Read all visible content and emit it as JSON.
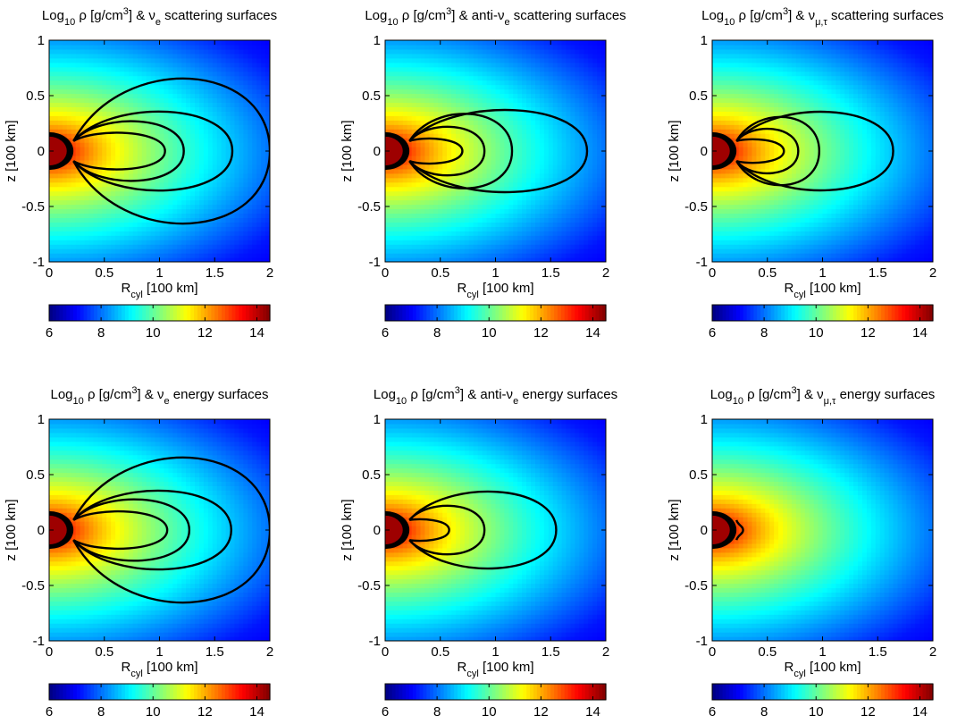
{
  "figure": {
    "colormap": "jet",
    "contour_color": "#000000",
    "common_titles": {
      "prefix": "Log",
      "sub10": "10",
      "rho_units": " ρ [g/cm",
      "sup3": "3",
      "close": "] & ",
      "nu": "ν"
    }
  },
  "chart_data": [
    {
      "type": "heatmap",
      "panel": "nue-scattering",
      "title": {
        "species_sub": "e",
        "anti": "",
        "suffix": " scattering surfaces"
      },
      "xlabel": {
        "main": "R",
        "sub": "cyl",
        "units": " [100 km]"
      },
      "ylabel": "z [100 km]",
      "xlim": [
        0,
        2
      ],
      "ylim": [
        -1,
        1
      ],
      "xticks": [
        "0",
        "0.5",
        "1",
        "1.5",
        "2"
      ],
      "yticks": [
        "-1",
        "-0.5",
        "0",
        "0.5",
        "1"
      ],
      "colorbar": {
        "range": [
          6,
          14.5
        ],
        "ticks": [
          "6",
          "8",
          "10",
          "12",
          "14"
        ]
      },
      "contours_x_extent": [
        1.05,
        1.22,
        1.66,
        2.0
      ]
    },
    {
      "type": "heatmap",
      "panel": "anti-nue-scattering",
      "title": {
        "species_sub": "e",
        "anti": "anti-",
        "suffix": " scattering surfaces"
      },
      "xlabel": {
        "main": "R",
        "sub": "cyl",
        "units": " [100 km]"
      },
      "ylabel": "z [100 km]",
      "xlim": [
        0,
        2
      ],
      "ylim": [
        -1,
        1
      ],
      "xticks": [
        "0",
        "0.5",
        "1",
        "1.5",
        "2"
      ],
      "yticks": [
        "-1",
        "-0.5",
        "0",
        "0.5",
        "1"
      ],
      "colorbar": {
        "range": [
          6,
          14.5
        ],
        "ticks": [
          "6",
          "8",
          "10",
          "12",
          "14"
        ]
      },
      "contours_x_extent": [
        0.7,
        0.9,
        1.15,
        1.83
      ]
    },
    {
      "type": "heatmap",
      "panel": "numutau-scattering",
      "title": {
        "species_sub": "μ,τ",
        "anti": "",
        "suffix": " scattering surfaces"
      },
      "xlabel": {
        "main": "R",
        "sub": "cyl",
        "units": " [100 km]"
      },
      "ylabel": "z [100 km]",
      "xlim": [
        0,
        2
      ],
      "ylim": [
        -1,
        1
      ],
      "xticks": [
        "0",
        "0.5",
        "1",
        "1.5",
        "2"
      ],
      "yticks": [
        "-1",
        "-0.5",
        "0",
        "0.5",
        "1"
      ],
      "colorbar": {
        "range": [
          6,
          14.5
        ],
        "ticks": [
          "6",
          "8",
          "10",
          "12",
          "14"
        ]
      },
      "contours_x_extent": [
        0.65,
        0.78,
        0.97,
        1.64
      ]
    },
    {
      "type": "heatmap",
      "panel": "nue-energy",
      "title": {
        "species_sub": "e",
        "anti": "",
        "suffix": " energy surfaces"
      },
      "xlabel": {
        "main": "R",
        "sub": "cyl",
        "units": " [100 km]"
      },
      "ylabel": "z [100 km]",
      "xlim": [
        0,
        2
      ],
      "ylim": [
        -1,
        1
      ],
      "xticks": [
        "0",
        "0.5",
        "1",
        "1.5",
        "2"
      ],
      "yticks": [
        "-1",
        "-0.5",
        "0",
        "0.5",
        "1"
      ],
      "colorbar": {
        "range": [
          6,
          14.5
        ],
        "ticks": [
          "6",
          "8",
          "10",
          "12",
          "14"
        ]
      },
      "contours_x_extent": [
        1.07,
        1.27,
        1.65,
        2.0
      ]
    },
    {
      "type": "heatmap",
      "panel": "anti-nue-energy",
      "title": {
        "species_sub": "e",
        "anti": "anti-",
        "suffix": " energy surfaces"
      },
      "xlabel": {
        "main": "R",
        "sub": "cyl",
        "units": " [100 km]"
      },
      "ylabel": "z [100 km]",
      "xlim": [
        0,
        2
      ],
      "ylim": [
        -1,
        1
      ],
      "xticks": [
        "0",
        "0.5",
        "1",
        "1.5",
        "2"
      ],
      "yticks": [
        "-1",
        "-0.5",
        "0",
        "0.5",
        "1"
      ],
      "colorbar": {
        "range": [
          6,
          14.5
        ],
        "ticks": [
          "6",
          "8",
          "10",
          "12",
          "14"
        ]
      },
      "contours_x_extent": [
        0.58,
        0.9,
        1.55
      ]
    },
    {
      "type": "heatmap",
      "panel": "numutau-energy",
      "title": {
        "species_sub": "μ,τ",
        "anti": "",
        "suffix": " energy surfaces"
      },
      "xlabel": {
        "main": "R",
        "sub": "cyl",
        "units": " [100 km]"
      },
      "ylabel": "z [100 km]",
      "xlim": [
        0,
        2
      ],
      "ylim": [
        -1,
        1
      ],
      "xticks": [
        "0",
        "0.5",
        "1",
        "1.5",
        "2"
      ],
      "yticks": [
        "-1",
        "-0.5",
        "0",
        "0.5",
        "1"
      ],
      "colorbar": {
        "range": [
          6,
          14.5
        ],
        "ticks": [
          "6",
          "8",
          "10",
          "12",
          "14"
        ]
      },
      "contours_x_extent": [
        0.28
      ]
    }
  ]
}
